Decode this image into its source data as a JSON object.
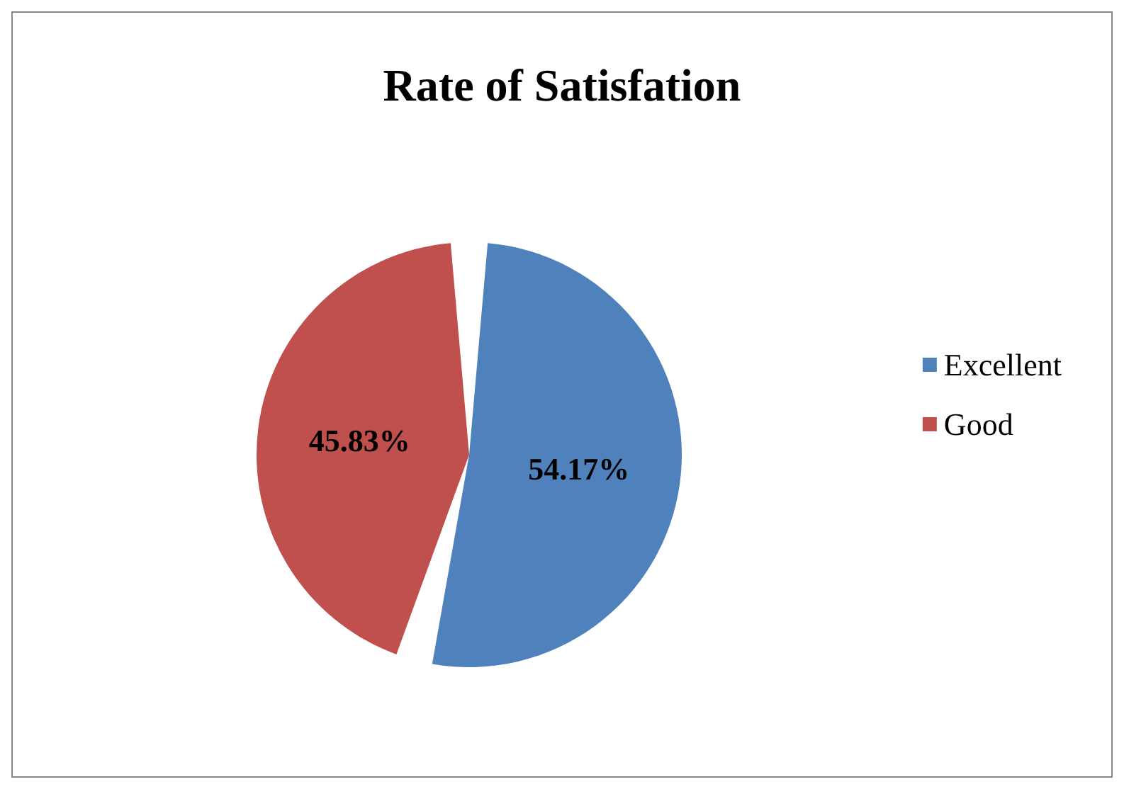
{
  "chart_data": {
    "type": "pie",
    "title": "Rate of Satisfation",
    "categories": [
      "Excellent",
      "Good"
    ],
    "values": [
      54.17,
      45.83
    ],
    "colors": [
      "#4f81bd",
      "#c0504d"
    ],
    "value_labels": [
      "54.17%",
      "45.83%"
    ],
    "legend": "right"
  }
}
